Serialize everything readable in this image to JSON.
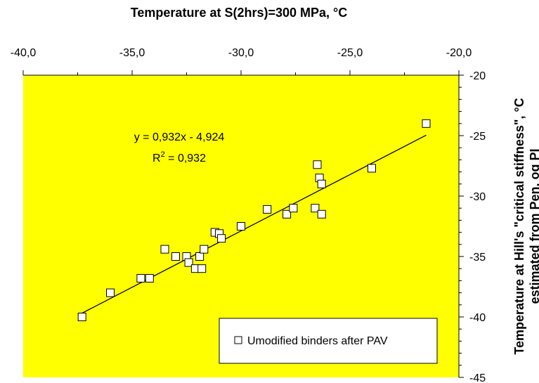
{
  "chart_data": {
    "type": "scatter",
    "title": "",
    "xlabel": "Temperature at S(2hrs)=300 MPa, °C",
    "ylabel_line1": "Temperature at Hill's \"critical stiffness\", °C",
    "ylabel_line2": "estimated from Pen. og PI",
    "xlim": [
      -40,
      -20
    ],
    "ylim": [
      -45,
      -20
    ],
    "x_axis_position": "top",
    "y_axis_position": "right",
    "x_ticks": [
      -40,
      -35,
      -30,
      -25,
      -20
    ],
    "y_ticks": [
      -20,
      -25,
      -30,
      -35,
      -40,
      -45
    ],
    "x_tick_labels": [
      "-40,0",
      "-35,0",
      "-30,0",
      "-25,0",
      "-20,0"
    ],
    "y_tick_labels": [
      "-20",
      "-25",
      "-30",
      "-35",
      "-40",
      "-45"
    ],
    "background_color": "#ffff00",
    "grid": false,
    "series": [
      {
        "name": "Umodified binders after PAV",
        "marker": "open-square",
        "x": [
          -37.3,
          -36.0,
          -34.6,
          -34.2,
          -33.5,
          -33.0,
          -32.5,
          -32.4,
          -32.1,
          -31.9,
          -31.8,
          -31.7,
          -31.2,
          -31.0,
          -30.9,
          -30.0,
          -28.8,
          -27.9,
          -27.6,
          -26.6,
          -26.5,
          -26.4,
          -26.3,
          -26.3,
          -24.0,
          -21.5
        ],
        "y": [
          -40.0,
          -38.0,
          -36.8,
          -36.8,
          -34.4,
          -35.0,
          -35.0,
          -35.5,
          -36.0,
          -35.0,
          -36.0,
          -34.4,
          -33.0,
          -33.1,
          -33.5,
          -32.5,
          -31.1,
          -31.5,
          -31.0,
          -31.0,
          -27.4,
          -28.5,
          -29.0,
          -31.5,
          -27.7,
          -24.0
        ]
      }
    ],
    "trendline": {
      "type": "linear",
      "slope": 0.932,
      "intercept": -4.924,
      "x_range": [
        -37.3,
        -21.5
      ],
      "equation_label": "y = 0,932x - 4,924",
      "r2_label_prefix": "R",
      "r2_label_superscript": "2",
      "r2_label_suffix": " = 0,932"
    },
    "legend": {
      "position": "bottom-right",
      "label": "Umodified binders after PAV"
    }
  }
}
